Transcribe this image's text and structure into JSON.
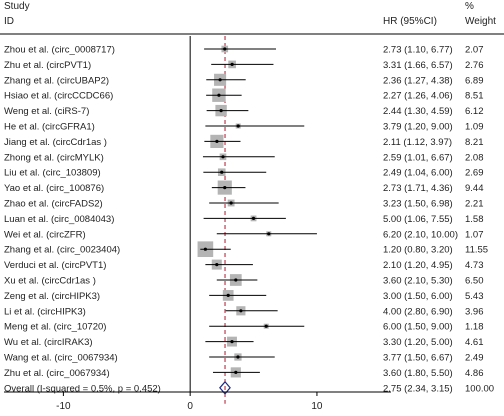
{
  "chart_data": {
    "type": "forest",
    "header": {
      "study_line1": "Study",
      "study_line2": "ID",
      "effect_col": "HR (95%CI)",
      "weight_line1": "%",
      "weight_line2": "Weight"
    },
    "xaxis": {
      "range": [
        -15,
        16
      ],
      "ticks": [
        -10,
        0,
        10
      ],
      "tick_labels": [
        "-10",
        "0",
        "10"
      ]
    },
    "null_line": 0,
    "pooled_line": 2.75,
    "studies": [
      {
        "label": "Zhou et al. (circ_0008717)",
        "hr": 2.73,
        "lo": 1.1,
        "hi": 6.77,
        "ci_text": "2.73 (1.10, 6.77)",
        "weight": 2.07,
        "weight_text": "2.07"
      },
      {
        "label": "Zhu et al. (circPVT1)",
        "hr": 3.31,
        "lo": 1.66,
        "hi": 6.57,
        "ci_text": "3.31 (1.66, 6.57)",
        "weight": 2.76,
        "weight_text": "2.76"
      },
      {
        "label": "Zhang et al. (circUBAP2)",
        "hr": 2.36,
        "lo": 1.27,
        "hi": 4.38,
        "ci_text": "2.36 (1.27, 4.38)",
        "weight": 6.89,
        "weight_text": "6.89"
      },
      {
        "label": "Hsiao et al. (circCCDC66)",
        "hr": 2.27,
        "lo": 1.26,
        "hi": 4.06,
        "ci_text": "2.27 (1.26, 4.06)",
        "weight": 8.51,
        "weight_text": "8.51"
      },
      {
        "label": "Weng et al. (ciRS-7)",
        "hr": 2.44,
        "lo": 1.3,
        "hi": 4.59,
        "ci_text": "2.44 (1.30, 4.59)",
        "weight": 6.12,
        "weight_text": "6.12"
      },
      {
        "label": "He et al. (circGFRA1)",
        "hr": 3.79,
        "lo": 1.2,
        "hi": 9.0,
        "ci_text": "3.79 (1.20, 9.00)",
        "weight": 1.09,
        "weight_text": "1.09"
      },
      {
        "label": "Jiang et al. (circCdr1as )",
        "hr": 2.11,
        "lo": 1.12,
        "hi": 3.97,
        "ci_text": "2.11 (1.12, 3.97)",
        "weight": 8.21,
        "weight_text": "8.21"
      },
      {
        "label": "Zhong et al. (circMYLK)",
        "hr": 2.59,
        "lo": 1.01,
        "hi": 6.67,
        "ci_text": "2.59 (1.01, 6.67)",
        "weight": 2.08,
        "weight_text": "2.08"
      },
      {
        "label": "Liu et al. (circ_103809)",
        "hr": 2.49,
        "lo": 1.04,
        "hi": 6.0,
        "ci_text": "2.49 (1.04, 6.00)",
        "weight": 2.69,
        "weight_text": "2.69"
      },
      {
        "label": "Yao et al. (circ_100876)",
        "hr": 2.73,
        "lo": 1.71,
        "hi": 4.36,
        "ci_text": "2.73 (1.71, 4.36)",
        "weight": 9.44,
        "weight_text": "9.44"
      },
      {
        "label": "Zhao et al. (circFADS2)",
        "hr": 3.23,
        "lo": 1.5,
        "hi": 6.98,
        "ci_text": "3.23 (1.50, 6.98)",
        "weight": 2.21,
        "weight_text": "2.21"
      },
      {
        "label": "Luan et al. (circ_0084043)",
        "hr": 5.0,
        "lo": 1.06,
        "hi": 7.55,
        "ci_text": "5.00 (1.06, 7.55)",
        "weight": 1.58,
        "weight_text": "1.58"
      },
      {
        "label": "Wei et al. (circZFR)",
        "hr": 6.2,
        "lo": 2.1,
        "hi": 10.0,
        "ci_text": "6.20 (2.10, 10.00)",
        "weight": 1.07,
        "weight_text": "1.07"
      },
      {
        "label": "Zhang et al. (circ_0023404)",
        "hr": 1.2,
        "lo": 0.8,
        "hi": 3.2,
        "ci_text": "1.20 (0.80, 3.20)",
        "weight": 11.55,
        "weight_text": "11.55"
      },
      {
        "label": "Verduci et al. (circPVT1)",
        "hr": 2.1,
        "lo": 1.2,
        "hi": 4.95,
        "ci_text": "2.10 (1.20, 4.95)",
        "weight": 4.73,
        "weight_text": "4.73"
      },
      {
        "label": "Xu et al. (circCdr1as )",
        "hr": 3.6,
        "lo": 2.1,
        "hi": 5.3,
        "ci_text": "3.60 (2.10, 5.30)",
        "weight": 6.5,
        "weight_text": "6.50"
      },
      {
        "label": "Zeng et al. (circHIPK3)",
        "hr": 3.0,
        "lo": 1.5,
        "hi": 6.0,
        "ci_text": "3.00 (1.50, 6.00)",
        "weight": 5.43,
        "weight_text": "5.43"
      },
      {
        "label": "Li et al. (circHIPK3)",
        "hr": 4.0,
        "lo": 2.8,
        "hi": 6.9,
        "ci_text": "4.00 (2.80, 6.90)",
        "weight": 3.96,
        "weight_text": "3.96"
      },
      {
        "label": "Meng et al. (circ_10720)",
        "hr": 6.0,
        "lo": 1.5,
        "hi": 9.0,
        "ci_text": "6.00 (1.50, 9.00)",
        "weight": 1.18,
        "weight_text": "1.18"
      },
      {
        "label": "Wu et al. (circIRAK3)",
        "hr": 3.3,
        "lo": 1.2,
        "hi": 5.0,
        "ci_text": "3.30 (1.20, 5.00)",
        "weight": 4.61,
        "weight_text": "4.61"
      },
      {
        "label": "Wang et al. (circ_0067934)",
        "hr": 3.77,
        "lo": 1.5,
        "hi": 6.67,
        "ci_text": "3.77 (1.50, 6.67)",
        "weight": 2.49,
        "weight_text": "2.49"
      },
      {
        "label": "Zhu et al. (circ_0067934)",
        "hr": 3.6,
        "lo": 1.8,
        "hi": 5.5,
        "ci_text": "3.60 (1.80, 5.50)",
        "weight": 4.86,
        "weight_text": "4.86"
      }
    ],
    "overall": {
      "label": "Overall  (I-squared = 0.5%, p = 0.452)",
      "hr": 2.75,
      "lo": 2.34,
      "hi": 3.15,
      "ci_text": "2.75 (2.34, 3.15)",
      "weight": 100.0,
      "weight_text": "100.00"
    },
    "colors": {
      "box": "#b4b4b4",
      "ci_line": "#000000",
      "point": "#000000",
      "pooled_line": "#b2182b",
      "diamond": "#1f2a80",
      "axis": "#000000"
    }
  }
}
